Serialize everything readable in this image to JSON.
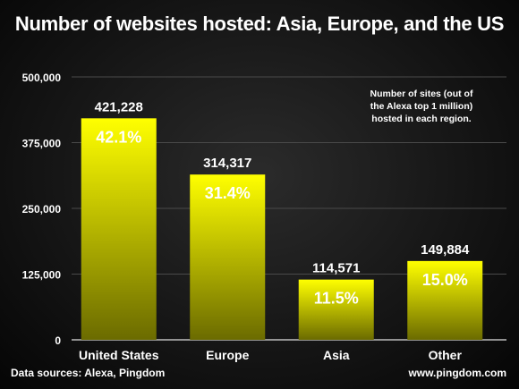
{
  "chart_data": {
    "type": "bar",
    "title": "Number of websites hosted: Asia, Europe, and the US",
    "categories": [
      "United States",
      "Europe",
      "Asia",
      "Other"
    ],
    "values": [
      421228,
      314317,
      114571,
      149884
    ],
    "value_labels": [
      "421,228",
      "314,317",
      "114,571",
      "149,884"
    ],
    "percent_labels": [
      "42.1%",
      "31.4%",
      "11.5%",
      "15.0%"
    ],
    "ylim": [
      0,
      500000
    ],
    "yticks": [
      0,
      125000,
      250000,
      375000,
      500000
    ],
    "ytick_labels": [
      "0",
      "125,000",
      "250,000",
      "375,000",
      "500,000"
    ],
    "grid": true,
    "legend": "none",
    "bar_color_top": "#ffff00",
    "bar_color_bottom": "#6b6b00",
    "annotation": "Number of sites (out of\nthe Alexa top 1 million)\nhosted in each region."
  },
  "footer": {
    "source": "Data sources: Alexa, Pingdom",
    "site": "www.pingdom.com"
  }
}
